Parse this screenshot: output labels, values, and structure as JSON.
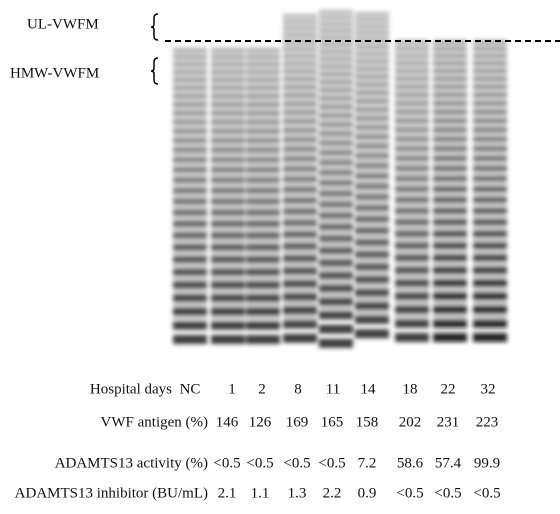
{
  "labels": {
    "ul": "UL-VWFM",
    "hmw": "HMW-VWFM"
  },
  "table": {
    "rows": [
      {
        "label": "Hospital days",
        "cells": [
          "NC",
          "1",
          "2",
          "8",
          "11",
          "14",
          "18",
          "22",
          "32"
        ]
      },
      {
        "label": "VWF antigen (%)",
        "cells": [
          "146",
          "126",
          "169",
          "165",
          "158",
          "202",
          "231",
          "223"
        ]
      },
      {
        "label": "ADAMTS13 activity (%)",
        "cells": [
          "<0.5",
          "<0.5",
          "<0.5",
          "<0.5",
          "7.2",
          "58.6",
          "57.4",
          "99.9"
        ]
      },
      {
        "label": "ADAMTS13 inhibitor (BU/mL)",
        "cells": [
          "2.1",
          "1.1",
          "1.3",
          "2.2",
          "0.9",
          "<0.5",
          "<0.5",
          "<0.5"
        ]
      }
    ]
  }
}
